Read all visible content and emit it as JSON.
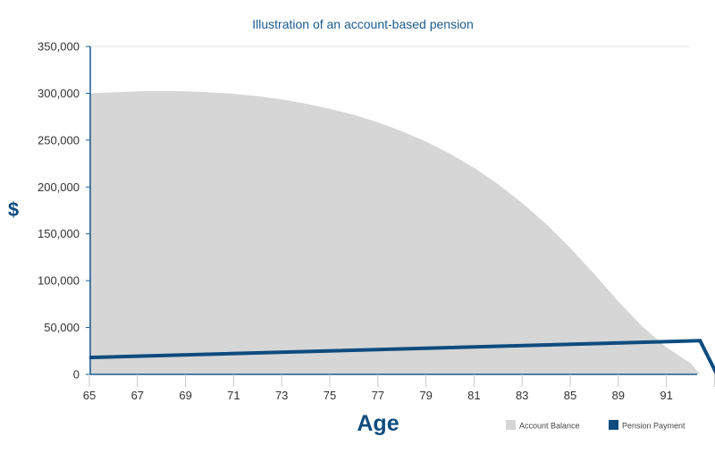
{
  "chart_data": {
    "type": "area",
    "title": "Illustration of an account-based pension",
    "xlabel": "Age",
    "ylabel": "$",
    "xlim": [
      65,
      92.2
    ],
    "ylim": [
      0,
      350000
    ],
    "x_ticks": [
      "65",
      "67",
      "69",
      "71",
      "73",
      "75",
      "77",
      "79",
      "81",
      "83",
      "85",
      "89",
      "91"
    ],
    "y_ticks": [
      "0",
      "50,000",
      "100,000",
      "150,000",
      "200,000",
      "250,000",
      "300,000",
      "350,000"
    ],
    "grid": false,
    "legend_position": "bottom-right",
    "series": [
      {
        "name": "Account Balance",
        "type": "area",
        "color": "#d6d6d6",
        "x": [
          65,
          66,
          67,
          68,
          69,
          70,
          71,
          72,
          73,
          74,
          75,
          76,
          77,
          78,
          79,
          80,
          81,
          82,
          83,
          84,
          85,
          86,
          87,
          88,
          89,
          90,
          90.4
        ],
        "y": [
          300000,
          301000,
          302000,
          302500,
          302000,
          301000,
          299500,
          297000,
          293500,
          289000,
          283500,
          277000,
          269000,
          259500,
          248500,
          235500,
          220500,
          203000,
          183000,
          160500,
          135000,
          107000,
          78000,
          51000,
          29000,
          12000,
          0
        ]
      },
      {
        "name": "Pension Payment",
        "type": "line",
        "color": "#0e4c7f",
        "x": [
          65,
          90.4,
          91.1,
          92.2
        ],
        "y": [
          18000,
          36000,
          0,
          0
        ]
      }
    ]
  }
}
